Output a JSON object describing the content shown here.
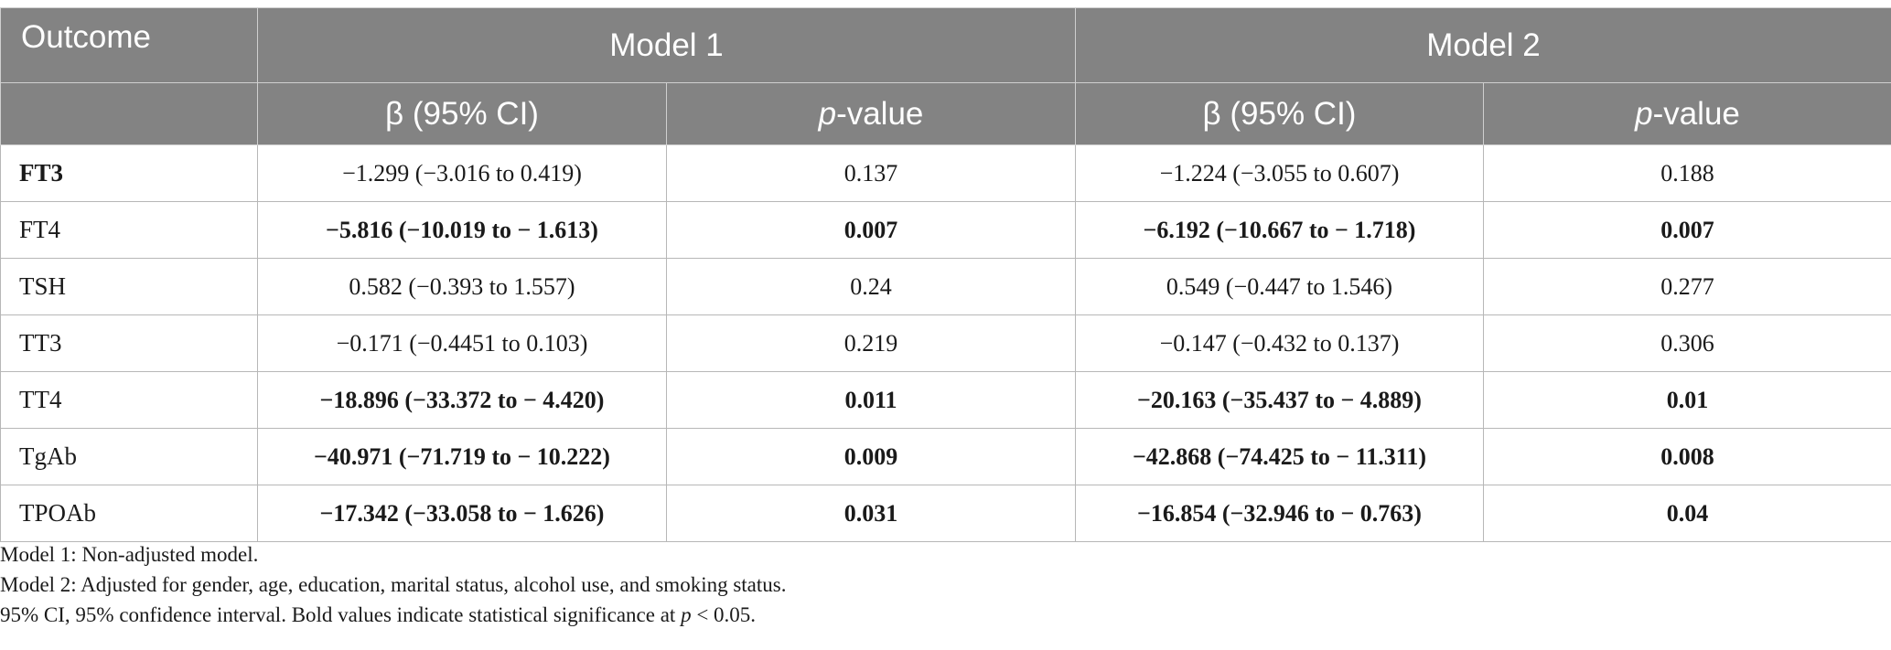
{
  "header": {
    "outcome": "Outcome",
    "model1": "Model 1",
    "model2": "Model 2",
    "beta_ci": "β (95% CI)",
    "p_italic": "p",
    "p_suffix": "-value"
  },
  "rows": [
    {
      "outcome": "FT3",
      "m1_beta": "−1.299 (−3.016 to 0.419)",
      "m1_p": "0.137",
      "m2_beta": "−1.224 (−3.055 to 0.607)",
      "m2_p": "0.188"
    },
    {
      "outcome": "FT4",
      "m1_beta": "−5.816 (−10.019 to − 1.613)",
      "m1_p": "0.007",
      "m2_beta": "−6.192 (−10.667 to − 1.718)",
      "m2_p": "0.007"
    },
    {
      "outcome": "TSH",
      "m1_beta": "0.582 (−0.393 to 1.557)",
      "m1_p": "0.24",
      "m2_beta": "0.549 (−0.447 to 1.546)",
      "m2_p": "0.277"
    },
    {
      "outcome": "TT3",
      "m1_beta": "−0.171 (−0.4451 to 0.103)",
      "m1_p": "0.219",
      "m2_beta": "−0.147 (−0.432 to 0.137)",
      "m2_p": "0.306"
    },
    {
      "outcome": "TT4",
      "m1_beta": "−18.896 (−33.372 to − 4.420)",
      "m1_p": "0.011",
      "m2_beta": "−20.163 (−35.437 to − 4.889)",
      "m2_p": "0.01"
    },
    {
      "outcome": "TgAb",
      "m1_beta": "−40.971 (−71.719 to − 10.222)",
      "m1_p": "0.009",
      "m2_beta": "−42.868 (−74.425 to − 11.311)",
      "m2_p": "0.008"
    },
    {
      "outcome": "TPOAb",
      "m1_beta": "−17.342 (−33.058 to − 1.626)",
      "m1_p": "0.031",
      "m2_beta": "−16.854 (−32.946 to − 0.763)",
      "m2_p": "0.04"
    }
  ],
  "notes": {
    "line1": "Model 1: Non-adjusted model.",
    "line2": "Model 2: Adjusted for gender, age, education, marital status, alcohol use, and smoking status.",
    "line3_prefix": "95% CI, 95% confidence interval. Bold values indicate statistical significance at ",
    "line3_p": "p",
    "line3_suffix": " < 0.05."
  }
}
